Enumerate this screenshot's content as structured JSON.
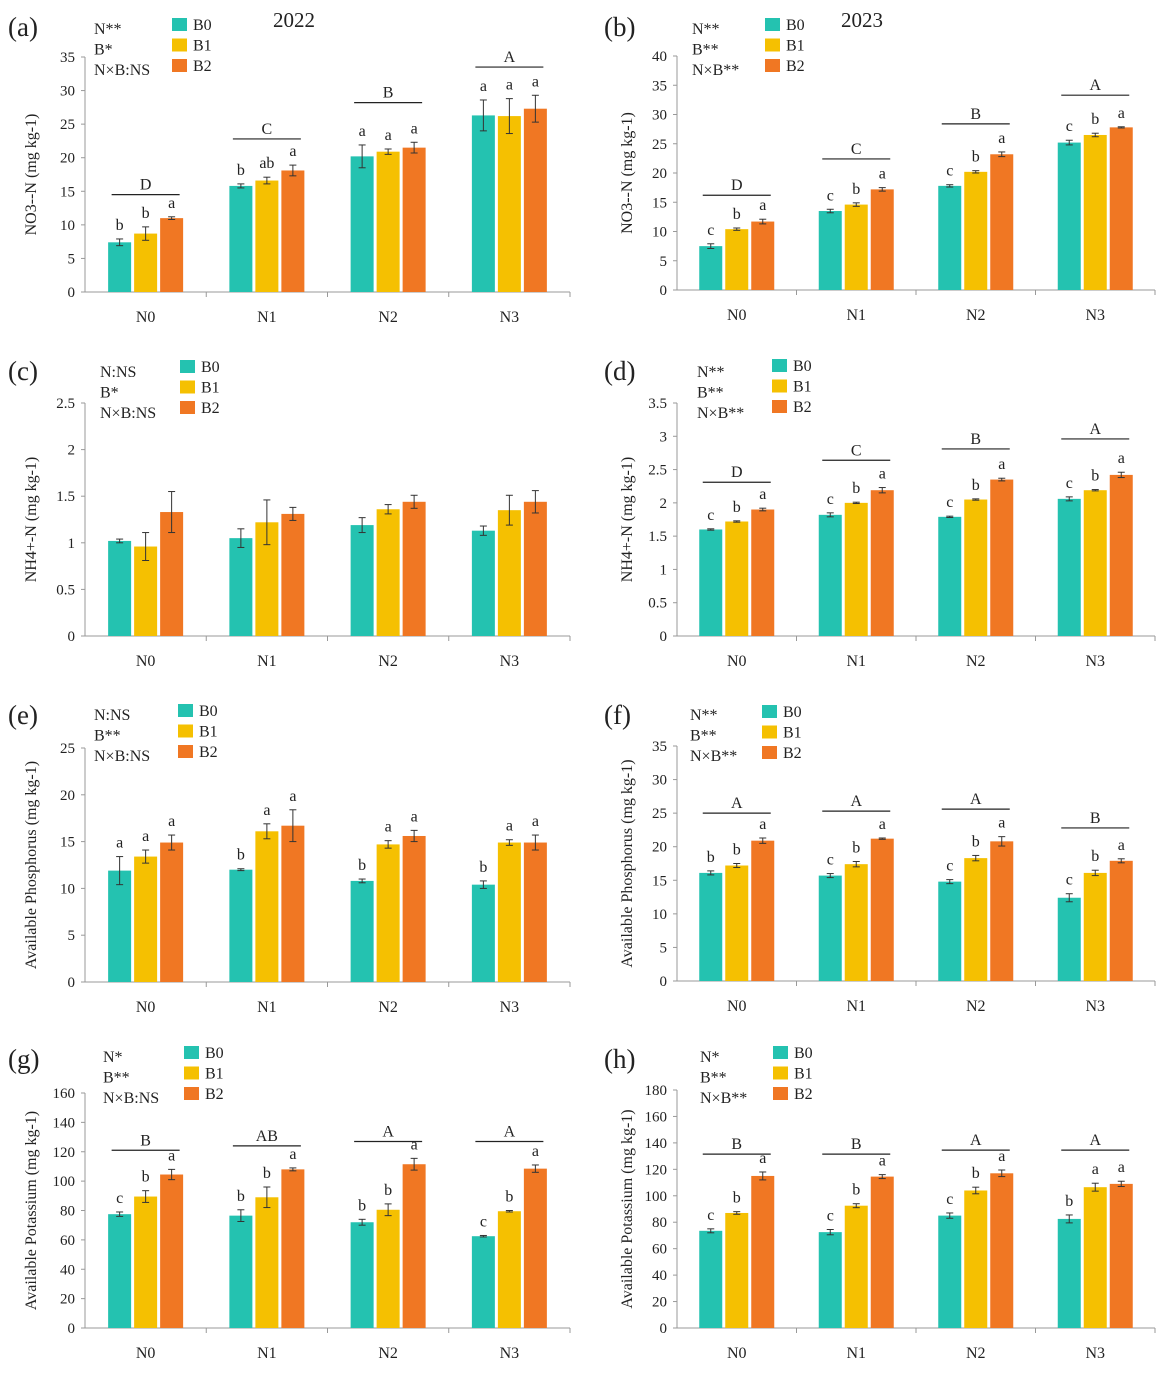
{
  "figure": {
    "colors": {
      "B0": "#24C2B0",
      "B1": "#F5C001",
      "B2": "#F07723"
    },
    "legend_labels": [
      "B0",
      "B1",
      "B2"
    ]
  },
  "chart_data": [
    {
      "panel": "(a)",
      "type": "bar",
      "year": "2022",
      "ylabel": "NO3--N (mg kg-1)",
      "ylim": [
        0,
        35
      ],
      "yticks": [
        0,
        5,
        10,
        15,
        20,
        25,
        30,
        35
      ],
      "categories": [
        "N0",
        "N1",
        "N2",
        "N3"
      ],
      "stats": [
        "N**",
        "B*",
        "N×B:NS"
      ],
      "series": [
        {
          "name": "B0",
          "values": [
            7.4,
            15.8,
            20.2,
            26.3
          ],
          "errors": [
            0.5,
            0.3,
            1.7,
            2.3
          ],
          "letters": [
            "b",
            "b",
            "a",
            "a"
          ]
        },
        {
          "name": "B1",
          "values": [
            8.7,
            16.6,
            20.9,
            26.2
          ],
          "errors": [
            1.0,
            0.5,
            0.4,
            2.6
          ],
          "letters": [
            "b",
            "ab",
            "a",
            "a"
          ]
        },
        {
          "name": "B2",
          "values": [
            11.0,
            18.1,
            21.5,
            27.3
          ],
          "errors": [
            0.2,
            0.8,
            0.8,
            2.0
          ],
          "letters": [
            "a",
            "a",
            "a",
            "a"
          ]
        }
      ],
      "group_letters": [
        "D",
        "C",
        "B",
        "A"
      ],
      "group_line_y": [
        14.5,
        22.8,
        28.2,
        33.5
      ]
    },
    {
      "panel": "(b)",
      "type": "bar",
      "year": "2023",
      "ylabel": "NO3--N (mg kg-1)",
      "ylim": [
        0,
        40
      ],
      "yticks": [
        0,
        5,
        10,
        15,
        20,
        25,
        30,
        35,
        40
      ],
      "categories": [
        "N0",
        "N1",
        "N2",
        "N3"
      ],
      "stats": [
        "N**",
        "B**",
        "N×B**"
      ],
      "series": [
        {
          "name": "B0",
          "values": [
            7.5,
            13.5,
            17.8,
            25.2
          ],
          "errors": [
            0.4,
            0.3,
            0.2,
            0.4
          ],
          "letters": [
            "c",
            "c",
            "c",
            "c"
          ]
        },
        {
          "name": "B1",
          "values": [
            10.4,
            14.6,
            20.2,
            26.5
          ],
          "errors": [
            0.2,
            0.3,
            0.2,
            0.3
          ],
          "letters": [
            "b",
            "b",
            "b",
            "b"
          ]
        },
        {
          "name": "B2",
          "values": [
            11.7,
            17.2,
            23.2,
            27.8
          ],
          "errors": [
            0.4,
            0.3,
            0.4,
            0.1
          ],
          "letters": [
            "a",
            "a",
            "a",
            "a"
          ]
        }
      ],
      "group_letters": [
        "D",
        "C",
        "B",
        "A"
      ],
      "group_line_y": [
        16.2,
        22.4,
        28.4,
        33.3
      ]
    },
    {
      "panel": "(c)",
      "type": "bar",
      "ylabel": "NH4+-N (mg kg-1)",
      "ylim": [
        0,
        2.5
      ],
      "yticks": [
        0,
        0.5,
        1,
        1.5,
        2,
        2.5
      ],
      "categories": [
        "N0",
        "N1",
        "N2",
        "N3"
      ],
      "stats": [
        "N:NS",
        "B*",
        "N×B:NS"
      ],
      "series": [
        {
          "name": "B0",
          "values": [
            1.02,
            1.05,
            1.19,
            1.13
          ],
          "errors": [
            0.02,
            0.1,
            0.08,
            0.05
          ]
        },
        {
          "name": "B1",
          "values": [
            0.96,
            1.22,
            1.36,
            1.35
          ],
          "errors": [
            0.15,
            0.24,
            0.05,
            0.16
          ]
        },
        {
          "name": "B2",
          "values": [
            1.33,
            1.31,
            1.44,
            1.44
          ],
          "errors": [
            0.22,
            0.07,
            0.07,
            0.12
          ]
        }
      ]
    },
    {
      "panel": "(d)",
      "type": "bar",
      "ylabel": "NH4+-N (mg kg-1)",
      "ylim": [
        0,
        3.5
      ],
      "yticks": [
        0,
        0.5,
        1,
        1.5,
        2,
        2.5,
        3,
        3.5
      ],
      "categories": [
        "N0",
        "N1",
        "N2",
        "N3"
      ],
      "stats": [
        "N**",
        "B**",
        "N×B**"
      ],
      "series": [
        {
          "name": "B0",
          "values": [
            1.6,
            1.82,
            1.79,
            2.06
          ],
          "errors": [
            0.01,
            0.03,
            0.01,
            0.03
          ],
          "letters": [
            "c",
            "c",
            "c",
            "c"
          ]
        },
        {
          "name": "B1",
          "values": [
            1.72,
            2.0,
            2.05,
            2.19
          ],
          "errors": [
            0.01,
            0.01,
            0.01,
            0.01
          ],
          "letters": [
            "b",
            "b",
            "b",
            "b"
          ]
        },
        {
          "name": "B2",
          "values": [
            1.9,
            2.19,
            2.35,
            2.42
          ],
          "errors": [
            0.02,
            0.04,
            0.02,
            0.04
          ],
          "letters": [
            "a",
            "a",
            "a",
            "a"
          ]
        }
      ],
      "group_letters": [
        "D",
        "C",
        "B",
        "A"
      ],
      "group_line_y": [
        2.31,
        2.64,
        2.81,
        2.96
      ]
    },
    {
      "panel": "(e)",
      "type": "bar",
      "ylabel": "Available Phosphorus (mg kg-1)",
      "ylim": [
        0,
        25
      ],
      "yticks": [
        0,
        5,
        10,
        15,
        20,
        25
      ],
      "categories": [
        "N0",
        "N1",
        "N2",
        "N3"
      ],
      "stats": [
        "N:NS",
        "B**",
        "N×B:NS"
      ],
      "series": [
        {
          "name": "B0",
          "values": [
            11.9,
            12.0,
            10.8,
            10.4
          ],
          "errors": [
            1.5,
            0.1,
            0.2,
            0.4
          ],
          "letters": [
            "a",
            "b",
            "b",
            "b"
          ]
        },
        {
          "name": "B1",
          "values": [
            13.4,
            16.1,
            14.7,
            14.9
          ],
          "errors": [
            0.7,
            0.8,
            0.4,
            0.3
          ],
          "letters": [
            "a",
            "a",
            "a",
            "a"
          ]
        },
        {
          "name": "B2",
          "values": [
            14.9,
            16.7,
            15.6,
            14.9
          ],
          "errors": [
            0.8,
            1.7,
            0.6,
            0.8
          ],
          "letters": [
            "a",
            "a",
            "a",
            "a"
          ]
        }
      ]
    },
    {
      "panel": "(f)",
      "type": "bar",
      "ylabel": "Available Phosphorus (mg kg-1)",
      "ylim": [
        0,
        35
      ],
      "yticks": [
        0,
        5,
        10,
        15,
        20,
        25,
        30,
        35
      ],
      "categories": [
        "N0",
        "N1",
        "N2",
        "N3"
      ],
      "stats": [
        "N**",
        "B**",
        "N×B**"
      ],
      "series": [
        {
          "name": "B0",
          "values": [
            16.1,
            15.7,
            14.8,
            12.4
          ],
          "errors": [
            0.3,
            0.3,
            0.3,
            0.6
          ],
          "letters": [
            "b",
            "c",
            "c",
            "c"
          ]
        },
        {
          "name": "B1",
          "values": [
            17.2,
            17.4,
            18.3,
            16.1
          ],
          "errors": [
            0.3,
            0.4,
            0.4,
            0.4
          ],
          "letters": [
            "b",
            "b",
            "b",
            "b"
          ]
        },
        {
          "name": "B2",
          "values": [
            20.9,
            21.2,
            20.8,
            17.9
          ],
          "errors": [
            0.4,
            0.1,
            0.7,
            0.3
          ],
          "letters": [
            "a",
            "a",
            "a",
            "a"
          ]
        }
      ],
      "group_letters": [
        "A",
        "A",
        "A",
        "B"
      ],
      "group_line_y": [
        25.0,
        25.3,
        25.6,
        22.8
      ]
    },
    {
      "panel": "(g)",
      "type": "bar",
      "ylabel": "Available Potassium (mg kg-1)",
      "ylim": [
        0,
        160
      ],
      "yticks": [
        0,
        20,
        40,
        60,
        80,
        100,
        120,
        140,
        160
      ],
      "categories": [
        "N0",
        "N1",
        "N2",
        "N3"
      ],
      "stats": [
        "N*",
        "B**",
        "N×B:NS"
      ],
      "series": [
        {
          "name": "B0",
          "values": [
            77.5,
            76.5,
            72.0,
            62.5
          ],
          "errors": [
            1.5,
            4.0,
            2.0,
            0.5
          ],
          "letters": [
            "c",
            "b",
            "b",
            "c"
          ]
        },
        {
          "name": "B1",
          "values": [
            89.5,
            89.0,
            80.5,
            79.5
          ],
          "errors": [
            4.0,
            7.0,
            4.0,
            0.5
          ],
          "letters": [
            "b",
            "b",
            "b",
            "b"
          ]
        },
        {
          "name": "B2",
          "values": [
            104.5,
            108.0,
            111.5,
            108.5
          ],
          "errors": [
            3.5,
            1.0,
            4.0,
            2.5
          ],
          "letters": [
            "a",
            "a",
            "a",
            "a"
          ]
        }
      ],
      "group_letters": [
        "B",
        "AB",
        "A",
        "A"
      ],
      "group_line_y": [
        121.0,
        124.0,
        127.0,
        127.0
      ]
    },
    {
      "panel": "(h)",
      "type": "bar",
      "ylabel": "Available Potassium (mg kg-1)",
      "ylim": [
        0,
        180
      ],
      "yticks": [
        0,
        20,
        40,
        60,
        80,
        100,
        120,
        140,
        160,
        180
      ],
      "categories": [
        "N0",
        "N1",
        "N2",
        "N3"
      ],
      "stats": [
        "N*",
        "B**",
        "N×B**"
      ],
      "series": [
        {
          "name": "B0",
          "values": [
            73.5,
            72.5,
            85.0,
            82.5
          ],
          "errors": [
            1.5,
            2.0,
            2.0,
            3.0
          ],
          "letters": [
            "c",
            "c",
            "c",
            "b"
          ]
        },
        {
          "name": "B1",
          "values": [
            87.0,
            92.5,
            104.0,
            106.5
          ],
          "errors": [
            1.0,
            1.5,
            2.5,
            3.0
          ],
          "letters": [
            "b",
            "b",
            "b",
            "a"
          ]
        },
        {
          "name": "B2",
          "values": [
            115.0,
            114.5,
            117.0,
            109.0
          ],
          "errors": [
            3.0,
            1.5,
            2.5,
            2.0
          ],
          "letters": [
            "a",
            "a",
            "a",
            "a"
          ]
        }
      ],
      "group_letters": [
        "B",
        "B",
        "A",
        "A"
      ],
      "group_line_y": [
        131.5,
        131.5,
        134.5,
        134.5
      ]
    }
  ]
}
